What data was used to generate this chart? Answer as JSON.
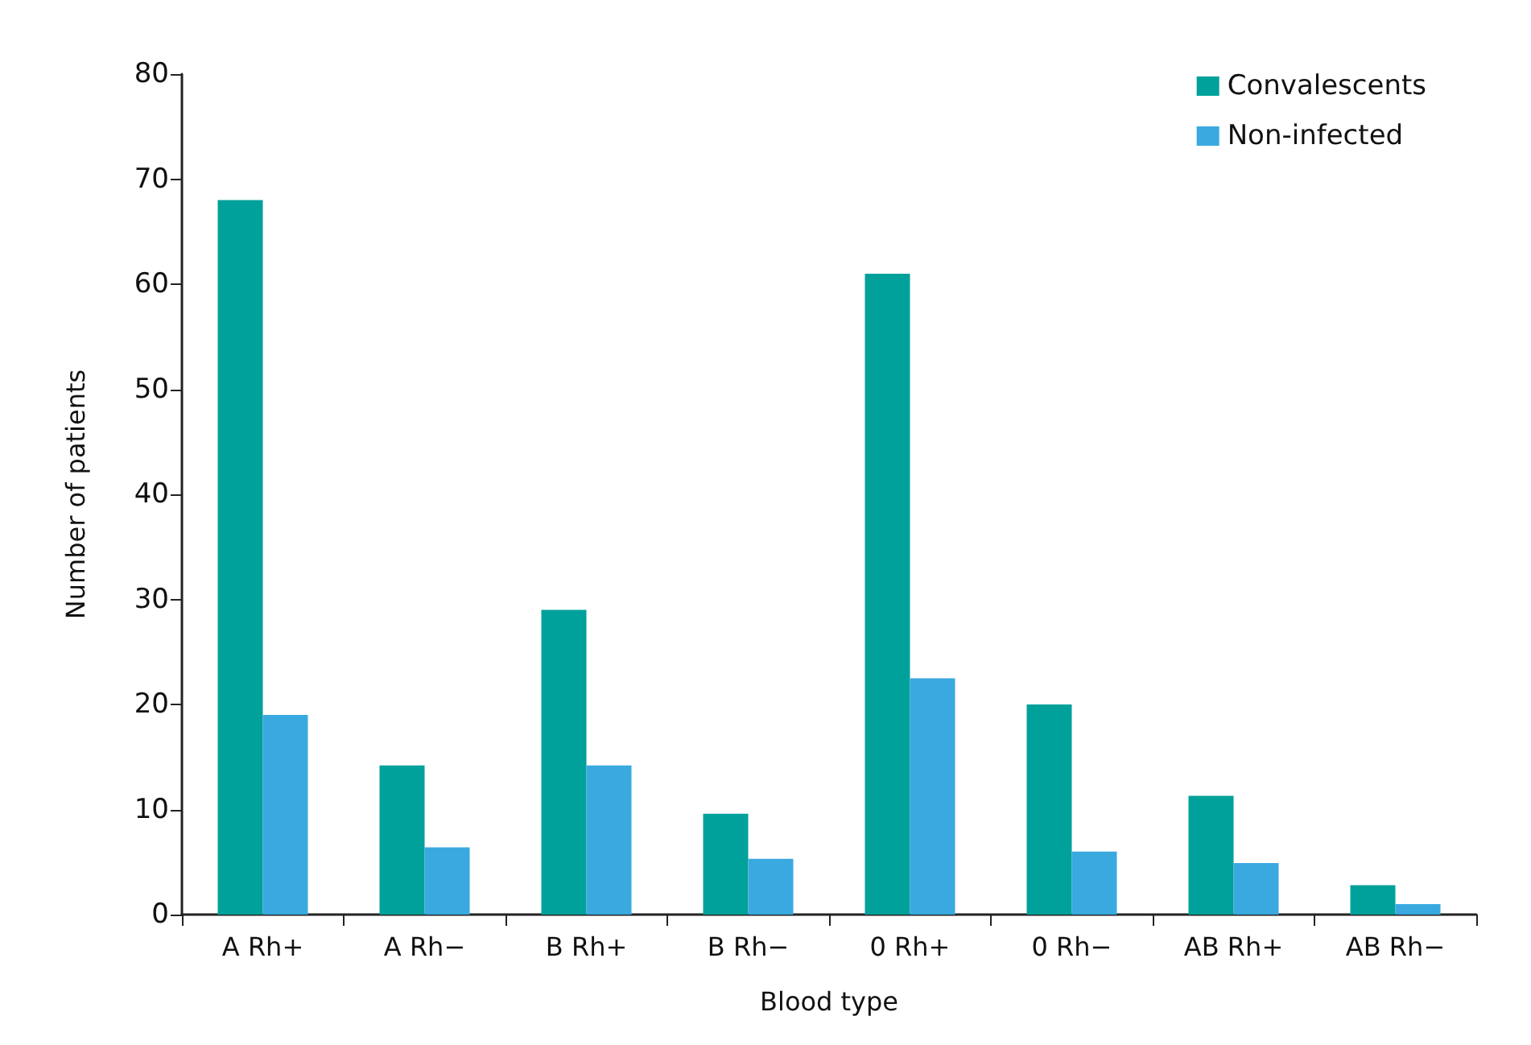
{
  "chart_data": {
    "type": "bar",
    "xlabel": "Blood type",
    "ylabel": "Number of patients",
    "categories": [
      "A Rh+",
      "A Rh−",
      "B Rh+",
      "B Rh−",
      "0 Rh+",
      "0 Rh−",
      "AB Rh+",
      "AB Rh−"
    ],
    "series": [
      {
        "name": "Convalescents",
        "color": "#00a19a",
        "values": [
          68,
          14.2,
          29,
          9.6,
          61,
          20,
          11.3,
          2.8
        ]
      },
      {
        "name": "Non-infected",
        "color": "#39a9e0",
        "values": [
          19,
          6.4,
          14.2,
          5.3,
          22.5,
          6,
          4.9,
          1
        ]
      }
    ],
    "ylim": [
      0,
      80
    ],
    "yticks": [
      0,
      10,
      20,
      30,
      40,
      50,
      60,
      70,
      80
    ],
    "grid": false,
    "legend": "top right"
  }
}
